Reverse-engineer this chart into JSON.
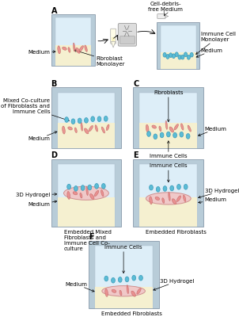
{
  "bg_color": "#ffffff",
  "well_outer": "#b8ccd8",
  "well_inner": "#ddeef8",
  "medium_color": "#f5f0d0",
  "hydrogel_color": "#f0c8c8",
  "fibroblast_color": "#e88888",
  "immune_cell_color": "#5bbcd6",
  "immune_cell_edge": "#3a9ab8",
  "panel_labels": [
    "A",
    "B",
    "C",
    "D",
    "E",
    "F"
  ],
  "text_medium": "Medium",
  "text_fibroblast_mono": "Fibroblast\nMonolayer",
  "text_immune_mono": "Immune Cell\nMonolayer",
  "text_cell_debris": "Cell-debris-\nfree Medium",
  "text_mixed": "Mixed Co-culture\nof Fibroblasts and\nImmune Cells",
  "text_fibroblasts": "Fibroblasts",
  "text_immune": "Immune Cells",
  "text_embedded_mixed": "Embedded Mixed\nFibroblasts and\nImmune Cell Co-\nculture",
  "text_emb_fib": "Embedded Fibroblasts",
  "text_3d": "3D Hydrogel",
  "fs": 5,
  "fs_panel": 7
}
